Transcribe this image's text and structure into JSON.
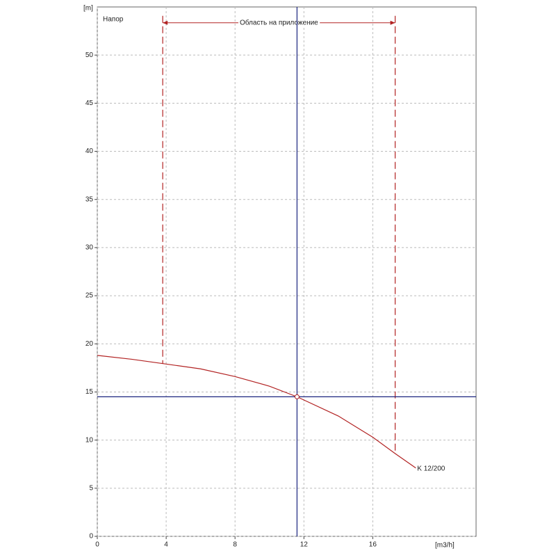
{
  "chart_data": {
    "type": "line",
    "title": "Напор",
    "x_label": "[m3/h]",
    "y_label": "[m]",
    "x": [
      0,
      2,
      4,
      6,
      8,
      10,
      11.6,
      14,
      16,
      17.3,
      18.5
    ],
    "series": [
      {
        "name": "K 12/200",
        "color": "#b22222",
        "values": [
          18.8,
          18.4,
          17.9,
          17.4,
          16.6,
          15.6,
          14.5,
          12.5,
          10.3,
          8.6,
          7.1
        ]
      }
    ],
    "xlim": [
      0,
      22
    ],
    "xticks": [
      0,
      4,
      8,
      12,
      16
    ],
    "ylim": [
      0,
      55
    ],
    "yticks": [
      0,
      5,
      10,
      15,
      20,
      25,
      30,
      35,
      40,
      45,
      50
    ],
    "grid": true,
    "operating_point": {
      "x": 11.6,
      "y": 14.5,
      "color": "#1a237e"
    },
    "range": {
      "label": "Область на приложение",
      "x": [
        3.8,
        17.3
      ],
      "y": 53.5
    }
  }
}
